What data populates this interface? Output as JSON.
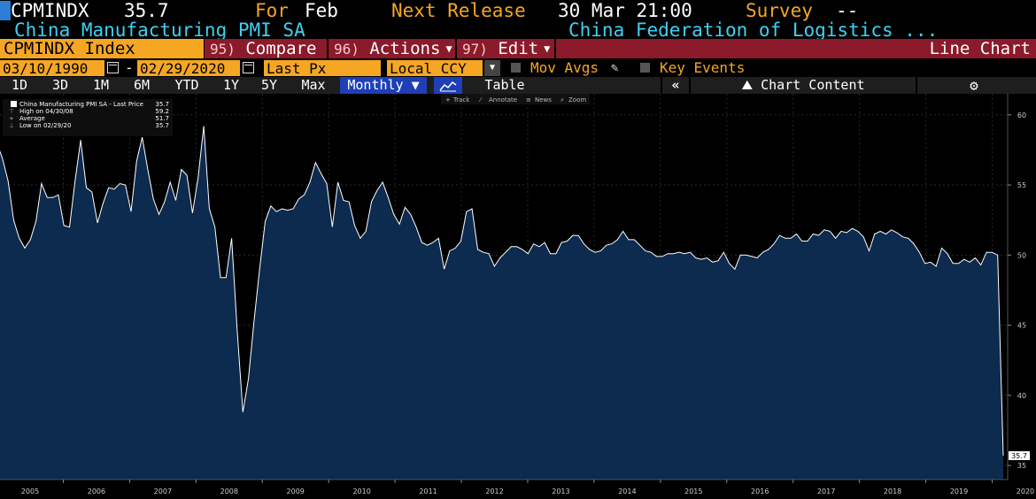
{
  "header": {
    "ticker": "CPMINDX",
    "last_value": "35.7",
    "for_label": "For",
    "for_period": "Feb",
    "next_release_label": "Next Release",
    "next_release_date": "30 Mar 21:00",
    "survey_label": "Survey",
    "survey_value": "--",
    "name": "China Manufacturing PMI SA",
    "source": "China Federation of Logistics ..."
  },
  "menubar": {
    "security": "CPMINDX Index",
    "compare_num": "95)",
    "compare_label": "Compare",
    "actions_num": "96)",
    "actions_label": "Actions",
    "edit_num": "97)",
    "edit_label": "Edit",
    "view_label": "Line Chart"
  },
  "options": {
    "start_date": "03/10/1990",
    "range_sep": "-",
    "end_date": "02/29/2020",
    "field": "Last Px",
    "currency": "Local CCY",
    "mov_avgs_label": "Mov Avgs",
    "key_events_label": "Key Events"
  },
  "toolbar": {
    "periods": [
      "1D",
      "3D",
      "1M",
      "6M",
      "YTD",
      "1Y",
      "5Y",
      "Max"
    ],
    "frequency": "Monthly",
    "table_label": "Table",
    "chart_content_label": "Chart Content",
    "tools": [
      "Track",
      "Annotate",
      "News",
      "Zoom"
    ]
  },
  "legend": {
    "series_label": "China Manufacturing PMI SA - Last Price",
    "series_value": "35.7",
    "high_label": "High on 04/30/08",
    "high_value": "59.2",
    "avg_label": "Average",
    "avg_value": "51.7",
    "low_label": "Low on 02/29/20",
    "low_value": "35.7"
  },
  "chart_data": {
    "type": "area",
    "series": [
      {
        "name": "China Manufacturing PMI SA",
        "color": "#ffffff",
        "fill": "#0d2a4f"
      }
    ],
    "start_year": 2004.83,
    "end_year": 2020.167,
    "values": [
      54.7,
      54.5,
      58.0,
      56.9,
      55.3,
      52.5,
      51.2,
      50.5,
      51.1,
      52.4,
      55.1,
      54.1,
      54.1,
      54.3,
      52.1,
      52.0,
      55.3,
      58.2,
      54.8,
      54.5,
      52.3,
      53.7,
      54.8,
      54.7,
      55.1,
      55.0,
      53.1,
      56.7,
      58.4,
      56.1,
      54.0,
      52.9,
      53.8,
      55.2,
      53.9,
      56.1,
      55.7,
      53.0,
      55.5,
      59.2,
      53.3,
      52.0,
      48.4,
      48.4,
      51.2,
      44.6,
      38.8,
      41.2,
      45.3,
      49.0,
      52.4,
      53.5,
      53.1,
      53.3,
      53.2,
      53.3,
      54.0,
      54.3,
      55.2,
      56.6,
      55.8,
      55.1,
      52.0,
      55.2,
      53.9,
      53.8,
      52.1,
      51.2,
      51.7,
      53.8,
      54.6,
      55.2,
      54.1,
      52.9,
      52.2,
      53.4,
      52.9,
      52.0,
      50.9,
      50.7,
      50.9,
      51.2,
      49.0,
      50.3,
      50.5,
      51.0,
      53.1,
      53.3,
      50.4,
      50.2,
      50.1,
      49.2,
      49.8,
      50.2,
      50.6,
      50.6,
      50.4,
      50.1,
      50.8,
      50.6,
      50.9,
      50.1,
      50.1,
      50.9,
      51.0,
      51.4,
      51.4,
      50.8,
      50.4,
      50.2,
      50.3,
      50.7,
      50.8,
      51.1,
      51.7,
      51.1,
      51.1,
      50.7,
      50.3,
      50.2,
      49.9,
      49.9,
      50.1,
      50.1,
      50.2,
      50.1,
      50.2,
      49.8,
      49.7,
      49.8,
      49.5,
      49.6,
      50.2,
      49.4,
      49.0,
      50.0,
      50.0,
      49.9,
      49.8,
      50.2,
      50.4,
      50.8,
      51.4,
      51.2,
      51.2,
      51.5,
      51.0,
      51.0,
      51.5,
      51.4,
      51.8,
      51.7,
      51.2,
      51.7,
      51.6,
      51.9,
      51.7,
      51.3,
      50.3,
      51.5,
      51.7,
      51.5,
      51.8,
      51.6,
      51.3,
      51.2,
      50.8,
      50.2,
      49.4,
      49.5,
      49.2,
      50.5,
      50.1,
      49.4,
      49.4,
      49.7,
      49.5,
      49.8,
      49.3,
      50.2,
      50.2,
      50.0,
      35.7
    ],
    "xlabel": "",
    "ylabel": "",
    "ylim": [
      34.0,
      61.5
    ],
    "y_ticks": [
      35,
      40,
      45,
      50,
      55,
      60
    ],
    "x_ticks": [
      "2005",
      "2006",
      "2007",
      "2008",
      "2009",
      "2010",
      "2011",
      "2012",
      "2013",
      "2014",
      "2015",
      "2016",
      "2017",
      "2018",
      "2019",
      "2020"
    ],
    "last_label": "35.7",
    "grid": true,
    "legend_position": "top-left"
  }
}
